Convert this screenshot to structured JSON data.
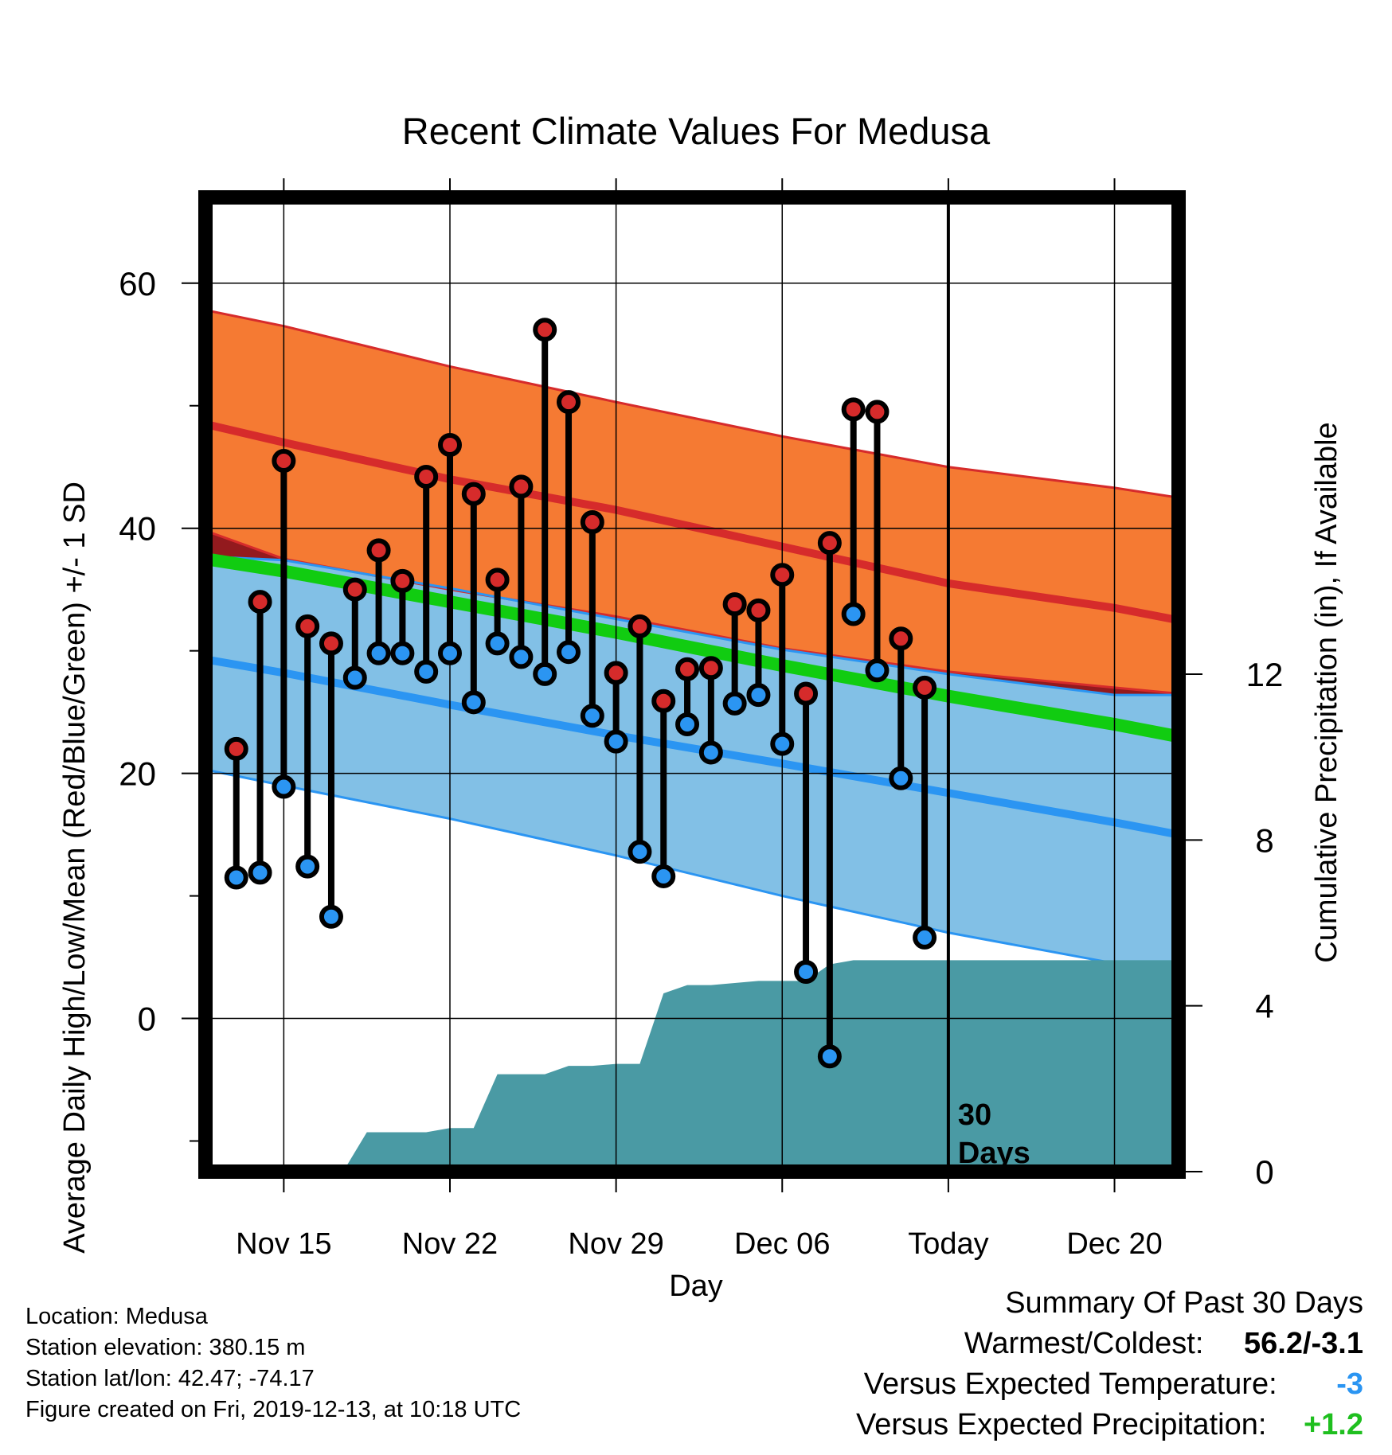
{
  "info": {
    "location": "Location: Medusa",
    "elevation": "Station elevation: 380.15 m",
    "latlon": "Station lat/lon: 42.47; -74.17",
    "created": "Figure created on Fri, 2019-12-13, at 10:18 UTC"
  },
  "summary": {
    "title": "Summary Of Past 30 Days",
    "warm_cold_label": "Warmest/Coldest:",
    "warm_cold_value": "56.2/-3.1",
    "temp_label": "Versus Expected Temperature:",
    "temp_value": "-3",
    "precip_label": "Versus Expected Precipitation:",
    "precip_value": "+1.2",
    "colors": {
      "temp_value": "#2b95f2",
      "precip_value": "#1fbf1f"
    }
  },
  "chart_data": {
    "type": "line",
    "title": "Recent Climate Values For Medusa",
    "xlabel": "Day",
    "ylabel": "Average Daily High/Low/Mean (Red/Blue/Green) +/- 1 SD",
    "y2label": "Cumulative Precipitation (in), If Available",
    "x_ticks": [
      {
        "day": 15,
        "label": "Nov 15"
      },
      {
        "day": 22,
        "label": "Nov 22"
      },
      {
        "day": 29,
        "label": "Nov 29"
      },
      {
        "day": 36,
        "label": "Dec 06"
      },
      {
        "day": 43,
        "label": "Today"
      },
      {
        "day": 50,
        "label": "Dec 20"
      }
    ],
    "xlim": [
      11.7,
      52.7
    ],
    "ylim": [
      -12.5,
      67
    ],
    "y_ticks": [
      0,
      20,
      40,
      60
    ],
    "y2lim": [
      0,
      23.5
    ],
    "y2_ticks": [
      0,
      4,
      8,
      12
    ],
    "today_day": 43,
    "today_annotation": [
      "30",
      "Days"
    ],
    "grid": true,
    "colors": {
      "high_band": "#f57a33",
      "high_mean": "#d62b2b",
      "low_band": "#82c0e6",
      "low_mean": "#2b95f2",
      "mean_line": "#11cc11",
      "overlap_band": "#931a1e",
      "precip": "#4a9aa4",
      "high_point": "#d62b2b",
      "low_point": "#2b95f2"
    },
    "normal_days": [
      11.7,
      15,
      22,
      29,
      36,
      43,
      50,
      52.7
    ],
    "normal_high_mean": [
      48.5,
      47,
      44,
      41.5,
      38.5,
      35.5,
      33.5,
      32.5
    ],
    "normal_high_upper": [
      57.8,
      56.5,
      53.2,
      50.3,
      47.5,
      45,
      43.3,
      42.5
    ],
    "normal_high_lower": [
      39.8,
      37.5,
      35,
      32.8,
      30.2,
      28.3,
      27,
      26.5
    ],
    "normal_low_mean": [
      29.3,
      28.2,
      25.6,
      23.1,
      20.8,
      18.4,
      16,
      15
    ],
    "normal_low_upper": [
      37.7,
      37.4,
      35.1,
      32.6,
      30.1,
      28.1,
      26.4,
      26.4
    ],
    "normal_low_lower": [
      20.3,
      19,
      16.3,
      13.3,
      10,
      7,
      4.5,
      3.2
    ],
    "normal_mean": [
      37.5,
      36.5,
      34,
      31.5,
      28.8,
      26.3,
      24,
      23
    ],
    "observations": {
      "days": [
        13,
        14,
        15,
        16,
        17,
        18,
        19,
        20,
        21,
        22,
        23,
        24,
        25,
        26,
        27,
        28,
        29,
        30,
        31,
        32,
        33,
        34,
        35,
        36,
        37,
        38,
        39,
        40,
        41,
        42
      ],
      "highs": [
        22,
        34,
        45.5,
        32,
        30.6,
        35,
        38.2,
        35.7,
        44.2,
        46.8,
        42.8,
        35.8,
        43.4,
        56.2,
        50.3,
        40.5,
        28.2,
        32,
        25.9,
        28.5,
        28.6,
        33.8,
        33.3,
        36.2,
        26.5,
        38.8,
        49.7,
        49.5,
        31,
        27
      ],
      "lows": [
        11.5,
        11.9,
        18.9,
        12.4,
        8.3,
        27.8,
        29.8,
        29.8,
        28.3,
        29.8,
        25.8,
        30.6,
        29.5,
        28.1,
        29.9,
        24.7,
        22.6,
        13.6,
        11.6,
        24,
        21.7,
        25.7,
        26.4,
        22.4,
        3.8,
        -3.1,
        33,
        28.4,
        19.6,
        6.6
      ]
    },
    "precip": {
      "days": [
        17.5,
        18.5,
        20.5,
        21,
        22,
        23,
        24,
        25,
        26,
        27,
        28,
        29,
        30,
        31,
        32,
        33,
        34,
        35,
        36,
        37,
        38,
        39,
        40,
        43,
        52.7
      ],
      "values": [
        0,
        0.95,
        0.95,
        0.95,
        1.05,
        1.05,
        2.35,
        2.35,
        2.35,
        2.55,
        2.55,
        2.6,
        2.6,
        4.3,
        4.5,
        4.5,
        4.55,
        4.6,
        4.6,
        4.6,
        5.0,
        5.1,
        5.1,
        5.1,
        5.1
      ]
    }
  }
}
